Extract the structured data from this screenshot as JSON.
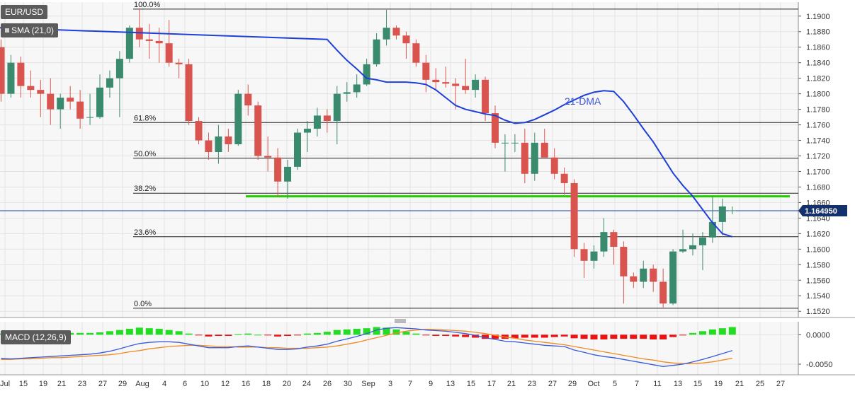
{
  "header": {
    "symbol": "EUR/USD",
    "sma_label": "SMA (21,0)",
    "macd_label": "MACD (12,26,9)"
  },
  "price_tag": "1.164950",
  "annotations": {
    "dma_label": "21-DMA"
  },
  "fib_levels": [
    {
      "label": "100.0%",
      "price": 1.1909
    },
    {
      "label": "61.8%",
      "price": 1.1763
    },
    {
      "label": "50.0%",
      "price": 1.1717
    },
    {
      "label": "38.2%",
      "price": 1.1672
    },
    {
      "label": "23.6%",
      "price": 1.1616
    },
    {
      "label": "0.0%",
      "price": 1.1524
    }
  ],
  "support_line": {
    "price": 1.1668,
    "color": "#22cc00"
  },
  "colors": {
    "up": "#3a8a6e",
    "down": "#d9534f",
    "sma": "#1f3fd9",
    "macd_line": "#3a5bd9",
    "signal_line": "#f08a24",
    "hist_pos": "#22dd22",
    "hist_neg": "#ee1111",
    "current_price": "#1f3fa8"
  },
  "chart_data": {
    "type": "candlestick",
    "title": "EUR/USD",
    "price_axis": {
      "ticks": [
        "1.1900",
        "1.1880",
        "1.1860",
        "1.1840",
        "1.1820",
        "1.1800",
        "1.1780",
        "1.1760",
        "1.1740",
        "1.1720",
        "1.1700",
        "1.1680",
        "1.1660",
        "1.1640",
        "1.1620",
        "1.1600",
        "1.1580",
        "1.1560",
        "1.1540",
        "1.1520"
      ],
      "range": [
        1.1512,
        1.1918
      ]
    },
    "x_ticks": [
      "Jul",
      "15",
      "19",
      "21",
      "23",
      "27",
      "29",
      "Aug",
      "4",
      "6",
      "10",
      "12",
      "16",
      "18",
      "20",
      "24",
      "26",
      "30",
      "Sep",
      "3",
      "7",
      "9",
      "13",
      "15",
      "17",
      "21",
      "23",
      "27",
      "29",
      "Oct",
      "5",
      "7",
      "11",
      "13",
      "15",
      "19",
      "21",
      "25",
      "27"
    ],
    "candles": [
      [
        1.186,
        1.187,
        1.179,
        1.18
      ],
      [
        1.18,
        1.185,
        1.1795,
        1.184
      ],
      [
        1.184,
        1.1848,
        1.1795,
        1.181
      ],
      [
        1.181,
        1.183,
        1.1795,
        1.1805
      ],
      [
        1.1805,
        1.1818,
        1.177,
        1.18
      ],
      [
        1.18,
        1.182,
        1.176,
        1.178
      ],
      [
        1.178,
        1.18,
        1.1755,
        1.1795
      ],
      [
        1.1795,
        1.181,
        1.178,
        1.179
      ],
      [
        1.179,
        1.1805,
        1.1755,
        1.1768
      ],
      [
        1.177,
        1.18,
        1.176,
        1.177
      ],
      [
        1.177,
        1.1825,
        1.1768,
        1.1808
      ],
      [
        1.1808,
        1.183,
        1.1795,
        1.182
      ],
      [
        1.182,
        1.1855,
        1.177,
        1.1845
      ],
      [
        1.1845,
        1.1888,
        1.184,
        1.1885
      ],
      [
        1.1885,
        1.191,
        1.186,
        1.187
      ],
      [
        1.187,
        1.189,
        1.1845,
        1.1868
      ],
      [
        1.1868,
        1.1885,
        1.184,
        1.1865
      ],
      [
        1.1865,
        1.1895,
        1.1835,
        1.184
      ],
      [
        1.184,
        1.1845,
        1.182,
        1.1838
      ],
      [
        1.1838,
        1.1845,
        1.176,
        1.1765
      ],
      [
        1.1765,
        1.177,
        1.1735,
        1.174
      ],
      [
        1.174,
        1.175,
        1.1715,
        1.1725
      ],
      [
        1.1725,
        1.176,
        1.171,
        1.1745
      ],
      [
        1.1745,
        1.1755,
        1.1725,
        1.1735
      ],
      [
        1.1735,
        1.1805,
        1.1733,
        1.18
      ],
      [
        1.18,
        1.1812,
        1.1772,
        1.1785
      ],
      [
        1.1785,
        1.179,
        1.1715,
        1.172
      ],
      [
        1.172,
        1.1745,
        1.17,
        1.1718
      ],
      [
        1.1718,
        1.173,
        1.1667,
        1.1687
      ],
      [
        1.1687,
        1.1715,
        1.1665,
        1.1706
      ],
      [
        1.1706,
        1.1755,
        1.1702,
        1.175
      ],
      [
        1.175,
        1.1765,
        1.1725,
        1.1755
      ],
      [
        1.1755,
        1.1782,
        1.1745,
        1.1772
      ],
      [
        1.1772,
        1.178,
        1.175,
        1.1765
      ],
      [
        1.1765,
        1.181,
        1.1735,
        1.18
      ],
      [
        1.18,
        1.1815,
        1.179,
        1.1802
      ],
      [
        1.1802,
        1.1825,
        1.1795,
        1.1812
      ],
      [
        1.1812,
        1.1845,
        1.181,
        1.1838
      ],
      [
        1.1838,
        1.1878,
        1.1835,
        1.187
      ],
      [
        1.187,
        1.1908,
        1.1862,
        1.1885
      ],
      [
        1.1885,
        1.1888,
        1.187,
        1.1875
      ],
      [
        1.1875,
        1.188,
        1.1845,
        1.1865
      ],
      [
        1.1865,
        1.187,
        1.1835,
        1.184
      ],
      [
        1.184,
        1.185,
        1.1802,
        1.1818
      ],
      [
        1.1818,
        1.1833,
        1.1805,
        1.1815
      ],
      [
        1.1815,
        1.1835,
        1.1808,
        1.1813
      ],
      [
        1.1813,
        1.182,
        1.178,
        1.181
      ],
      [
        1.181,
        1.1845,
        1.18,
        1.1805
      ],
      [
        1.1805,
        1.1825,
        1.1795,
        1.1818
      ],
      [
        1.1818,
        1.1822,
        1.1765,
        1.1775
      ],
      [
        1.1775,
        1.1785,
        1.173,
        1.1737
      ],
      [
        1.1737,
        1.1748,
        1.17,
        1.1737
      ],
      [
        1.1737,
        1.1748,
        1.1725,
        1.1737
      ],
      [
        1.1737,
        1.1755,
        1.1685,
        1.1697
      ],
      [
        1.1697,
        1.175,
        1.1688,
        1.1737
      ],
      [
        1.1737,
        1.1755,
        1.172,
        1.1718
      ],
      [
        1.1718,
        1.173,
        1.169,
        1.1697
      ],
      [
        1.1697,
        1.1705,
        1.167,
        1.1685
      ],
      [
        1.1685,
        1.169,
        1.159,
        1.16
      ],
      [
        1.16,
        1.1608,
        1.1563,
        1.1585
      ],
      [
        1.1585,
        1.1605,
        1.1575,
        1.1597
      ],
      [
        1.1597,
        1.164,
        1.159,
        1.1622
      ],
      [
        1.1622,
        1.1625,
        1.158,
        1.1603
      ],
      [
        1.1603,
        1.161,
        1.153,
        1.1565
      ],
      [
        1.1565,
        1.157,
        1.155,
        1.1558
      ],
      [
        1.1558,
        1.1585,
        1.155,
        1.1575
      ],
      [
        1.1575,
        1.158,
        1.1545,
        1.1558
      ],
      [
        1.1558,
        1.1575,
        1.1525,
        1.153
      ],
      [
        1.153,
        1.16,
        1.1528,
        1.1597
      ],
      [
        1.1597,
        1.1625,
        1.1595,
        1.16
      ],
      [
        1.16,
        1.162,
        1.1592,
        1.1605
      ],
      [
        1.1605,
        1.1622,
        1.1573,
        1.1615
      ],
      [
        1.1615,
        1.1668,
        1.1608,
        1.1635
      ],
      [
        1.1635,
        1.1665,
        1.1618,
        1.1655
      ],
      [
        1.165,
        1.1655,
        1.1645,
        1.165
      ]
    ],
    "sma_21": [
      1.1885,
      1.187,
      1.1856,
      1.1843,
      1.1832,
      1.182,
      1.1818,
      1.1815,
      1.1815,
      1.1815,
      1.1814,
      1.1812,
      1.1805,
      1.1795,
      1.1785,
      1.178,
      1.1777,
      1.1774,
      1.1772,
      1.1766,
      1.1762,
      1.1763,
      1.1767,
      1.1773,
      1.1779,
      1.1786,
      1.1792,
      1.1798,
      1.1802,
      1.1804,
      1.1803,
      1.179,
      1.1773,
      1.1755,
      1.1738,
      1.1718,
      1.1698,
      1.1682,
      1.1668,
      1.1651,
      1.1634,
      1.162,
      1.1616
    ],
    "sma_21_start_index": 32,
    "macd_axis": {
      "ticks": [
        "0.0000",
        "-0.0050"
      ]
    },
    "macd": {
      "macd_line": [
        -0.004,
        -0.0041,
        -0.004,
        -0.0039,
        -0.0038,
        -0.0037,
        -0.0036,
        -0.0035,
        -0.0034,
        -0.0033,
        -0.0031,
        -0.0028,
        -0.0024,
        -0.0019,
        -0.0015,
        -0.0013,
        -0.0012,
        -0.0012,
        -0.0013,
        -0.0016,
        -0.0019,
        -0.0022,
        -0.0022,
        -0.0022,
        -0.002,
        -0.0019,
        -0.0021,
        -0.0023,
        -0.0025,
        -0.0025,
        -0.0024,
        -0.0021,
        -0.0019,
        -0.0016,
        -0.0011,
        -0.0007,
        -0.0003,
        0.0002,
        0.0008,
        0.0011,
        0.0012,
        0.0011,
        0.001,
        0.0008,
        0.0007,
        0.0006,
        0.0004,
        0.0002,
        -0.0001,
        -0.0005,
        -0.0008,
        -0.0011,
        -0.0012,
        -0.0014,
        -0.0016,
        -0.0018,
        -0.0019,
        -0.002,
        -0.0026,
        -0.003,
        -0.0034,
        -0.0037,
        -0.0039,
        -0.0042,
        -0.0045,
        -0.0048,
        -0.0051,
        -0.0054,
        -0.0052,
        -0.005,
        -0.0046,
        -0.0042,
        -0.0037,
        -0.0032,
        -0.0027
      ],
      "signal_line": [
        -0.0042,
        -0.0042,
        -0.0041,
        -0.0041,
        -0.004,
        -0.0039,
        -0.0039,
        -0.0038,
        -0.0037,
        -0.0036,
        -0.0035,
        -0.0034,
        -0.0032,
        -0.0029,
        -0.0027,
        -0.0024,
        -0.0022,
        -0.002,
        -0.0019,
        -0.0018,
        -0.0018,
        -0.0019,
        -0.002,
        -0.002,
        -0.0021,
        -0.0021,
        -0.0021,
        -0.0022,
        -0.0022,
        -0.0023,
        -0.0023,
        -0.0023,
        -0.0022,
        -0.0021,
        -0.0019,
        -0.0016,
        -0.0013,
        -0.0009,
        -0.0005,
        -0.0001,
        0.0003,
        0.0006,
        0.0008,
        0.0009,
        0.0009,
        0.0008,
        0.0007,
        0.0006,
        0.0004,
        0.0002,
        -0.0001,
        -0.0004,
        -0.0006,
        -0.0009,
        -0.0011,
        -0.0013,
        -0.0015,
        -0.0017,
        -0.002,
        -0.0023,
        -0.0026,
        -0.0029,
        -0.0032,
        -0.0035,
        -0.0038,
        -0.0041,
        -0.0043,
        -0.0046,
        -0.0048,
        -0.0049,
        -0.0049,
        -0.0048,
        -0.0046,
        -0.0043,
        -0.004
      ]
    }
  }
}
